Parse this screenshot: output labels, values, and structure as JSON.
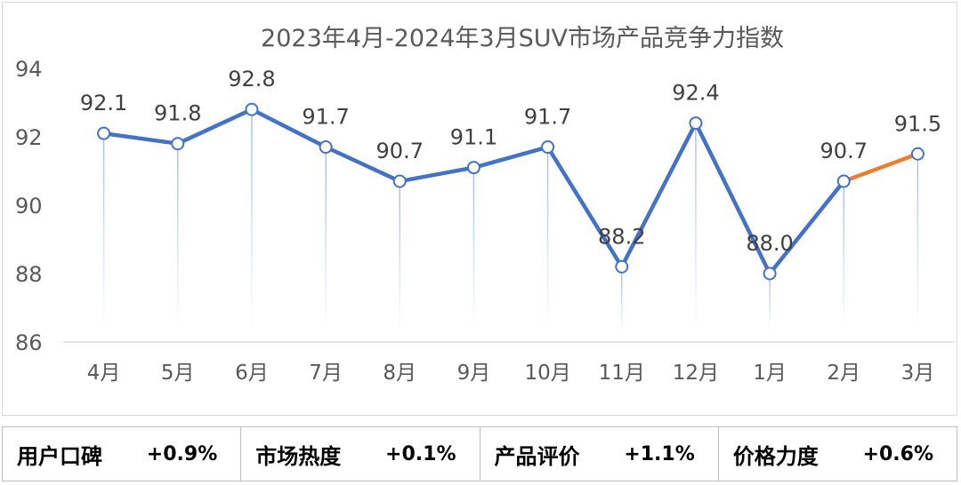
{
  "chart_data": {
    "type": "line",
    "title": "2023年4月-2024年3月SUV市场产品竞争力指数",
    "categories": [
      "4月",
      "5月",
      "6月",
      "7月",
      "8月",
      "9月",
      "10月",
      "11月",
      "12月",
      "1月",
      "2月",
      "3月"
    ],
    "values": [
      92.1,
      91.8,
      92.8,
      91.7,
      90.7,
      91.1,
      91.7,
      88.2,
      92.4,
      88.0,
      90.7,
      91.5
    ],
    "data_labels": [
      "92.1",
      "91.8",
      "92.8",
      "91.7",
      "90.7",
      "91.1",
      "91.7",
      "88.2",
      "92.4",
      "88.0",
      "90.7",
      "91.5"
    ],
    "ylim": [
      86,
      94
    ],
    "yticks": [
      "86",
      "88",
      "90",
      "92",
      "94"
    ],
    "xlabel": "",
    "ylabel": "",
    "grid": false,
    "colors": {
      "line": "#4472C4",
      "last_segment": "#ED7D31",
      "drop_line": "#C9D8EC"
    }
  },
  "metrics": [
    {
      "label": "用户口碑",
      "value": "+0.9%"
    },
    {
      "label": "市场热度",
      "value": "+0.1%"
    },
    {
      "label": "产品评价",
      "value": "+1.1%"
    },
    {
      "label": "价格力度",
      "value": "+0.6%"
    }
  ]
}
